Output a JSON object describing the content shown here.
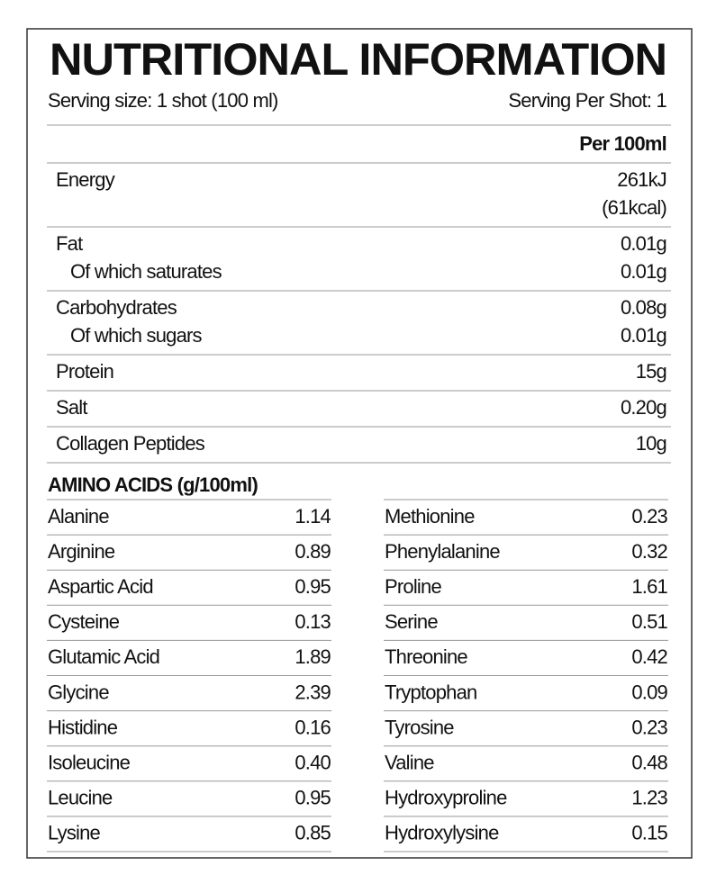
{
  "header": {
    "title": "NUTRITIONAL INFORMATION",
    "serving_size": "Serving size: 1 shot (100 ml)",
    "servings": "Serving Per Shot: 1"
  },
  "nutrition": {
    "column_header": "Per 100ml",
    "rows": [
      {
        "lines": [
          {
            "label": "Energy",
            "value": "261kJ"
          },
          {
            "value": "(61kcal)"
          }
        ]
      },
      {
        "lines": [
          {
            "label": "Fat",
            "value": "0.01g"
          },
          {
            "sublabel": "Of which saturates",
            "value": "0.01g"
          }
        ]
      },
      {
        "lines": [
          {
            "label": "Carbohydrates",
            "value": "0.08g"
          },
          {
            "sublabel": "Of which sugars",
            "value": "0.01g"
          }
        ]
      },
      {
        "lines": [
          {
            "label": "Protein",
            "value": "15g"
          }
        ]
      },
      {
        "lines": [
          {
            "label": "Salt",
            "value": "0.20g"
          }
        ]
      },
      {
        "lines": [
          {
            "label": "Collagen Peptides",
            "value": "10g"
          }
        ]
      }
    ]
  },
  "amino_acids": {
    "title": "AMINO ACIDS (g/100ml)",
    "columns": [
      [
        [
          "Alanine",
          "1.14"
        ],
        [
          "Arginine",
          "0.89"
        ],
        [
          "Aspartic Acid",
          "0.95"
        ],
        [
          "Cysteine",
          "0.13"
        ],
        [
          "Glutamic Acid",
          "1.89"
        ],
        [
          "Glycine",
          "2.39"
        ],
        [
          "Histidine",
          "0.16"
        ],
        [
          "Isoleucine",
          "0.40"
        ],
        [
          "Leucine",
          "0.95"
        ],
        [
          "Lysine",
          "0.85"
        ]
      ],
      [
        [
          "Methionine",
          "0.23"
        ],
        [
          "Phenylalanine",
          "0.32"
        ],
        [
          "Proline",
          "1.61"
        ],
        [
          "Serine",
          "0.51"
        ],
        [
          "Threonine",
          "0.42"
        ],
        [
          "Tryptophan",
          "0.09"
        ],
        [
          "Tyrosine",
          "0.23"
        ],
        [
          "Valine",
          "0.48"
        ],
        [
          "Hydroxyproline",
          "1.23"
        ],
        [
          "Hydroxylysine",
          "0.15"
        ]
      ]
    ]
  }
}
